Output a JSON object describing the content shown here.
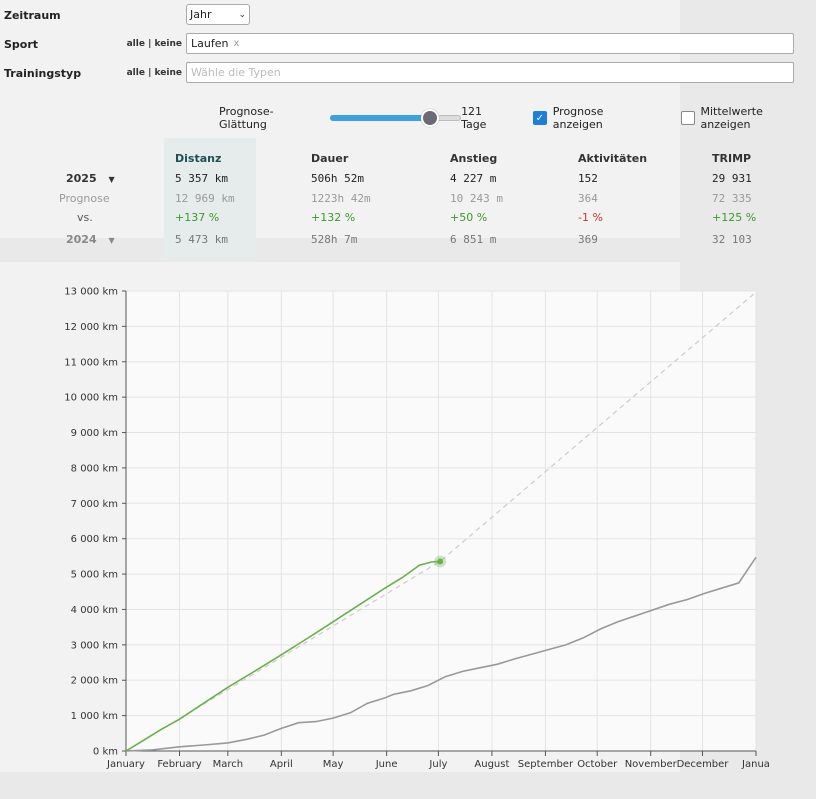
{
  "filters": {
    "zeitraum": {
      "label": "Zeitraum",
      "value": "Jahr"
    },
    "sport": {
      "label": "Sport",
      "alle": "alle",
      "sep": "|",
      "keine": "keine",
      "tag": "Laufen",
      "tag_remove": "x"
    },
    "trainingstyp": {
      "label": "Trainingstyp",
      "alle": "alle",
      "sep": "|",
      "keine": "keine",
      "placeholder": "Wähle die Typen"
    }
  },
  "controls": {
    "smoothing_label": "Prognose-Glättung",
    "smoothing_value": "121 Tage",
    "smoothing_fraction": 0.76,
    "show_forecast_label": "Prognose anzeigen",
    "show_forecast_checked": true,
    "show_means_label": "Mittelwerte anzeigen",
    "show_means_checked": false
  },
  "stats": {
    "headers": [
      "Distanz",
      "Dauer",
      "Anstieg",
      "Aktivitäten",
      "TRIMP"
    ],
    "year_current": "2025",
    "row_current": [
      "5 357 km",
      "506h 52m",
      "4 227 m",
      "152",
      "29 931"
    ],
    "forecast_label": "Prognose",
    "row_forecast": [
      "12 969 km",
      "1223h 42m",
      "10 243 m",
      "364",
      "72 335"
    ],
    "vs_label": "vs.",
    "row_vs": [
      "+137 %",
      "+132 %",
      "+50 %",
      "-1 %",
      "+125 %"
    ],
    "year_compare": "2024",
    "row_compare": [
      "5 473 km",
      "528h 7m",
      "6 851 m",
      "369",
      "32 103"
    ]
  },
  "chart_data": {
    "type": "line",
    "x_labels": [
      "January",
      "February",
      "March",
      "April",
      "May",
      "June",
      "July",
      "August",
      "September",
      "October",
      "November",
      "December",
      "Janua"
    ],
    "y_ticks": [
      "0 km",
      "1 000 km",
      "2 000 km",
      "3 000 km",
      "4 000 km",
      "5 000 km",
      "6 000 km",
      "7 000 km",
      "8 000 km",
      "9 000 km",
      "10 000 km",
      "11 000 km",
      "12 000 km",
      "13 000 km"
    ],
    "ylim": [
      0,
      13000
    ],
    "xlim_days": [
      0,
      365
    ],
    "grid": true,
    "series": [
      {
        "name": "2025",
        "color": "#6ab04c",
        "points": [
          [
            0,
            0
          ],
          [
            10,
            300
          ],
          [
            20,
            600
          ],
          [
            31,
            900
          ],
          [
            45,
            1350
          ],
          [
            59,
            1800
          ],
          [
            75,
            2270
          ],
          [
            90,
            2720
          ],
          [
            105,
            3180
          ],
          [
            120,
            3650
          ],
          [
            135,
            4130
          ],
          [
            150,
            4600
          ],
          [
            160,
            4900
          ],
          [
            170,
            5250
          ],
          [
            177,
            5340
          ],
          [
            182,
            5357
          ]
        ]
      },
      {
        "name": "2025 Prognose",
        "color": "#cccccc",
        "dashed": true,
        "points": [
          [
            0,
            0
          ],
          [
            182,
            5357
          ],
          [
            365,
            12969
          ]
        ]
      },
      {
        "name": "2024",
        "color": "#999999",
        "points": [
          [
            0,
            0
          ],
          [
            15,
            30
          ],
          [
            31,
            120
          ],
          [
            45,
            170
          ],
          [
            59,
            230
          ],
          [
            70,
            330
          ],
          [
            80,
            450
          ],
          [
            90,
            640
          ],
          [
            100,
            800
          ],
          [
            110,
            830
          ],
          [
            120,
            930
          ],
          [
            130,
            1080
          ],
          [
            140,
            1350
          ],
          [
            150,
            1500
          ],
          [
            155,
            1600
          ],
          [
            165,
            1700
          ],
          [
            175,
            1850
          ],
          [
            185,
            2100
          ],
          [
            195,
            2250
          ],
          [
            205,
            2350
          ],
          [
            215,
            2450
          ],
          [
            225,
            2600
          ],
          [
            240,
            2800
          ],
          [
            255,
            3000
          ],
          [
            265,
            3200
          ],
          [
            275,
            3450
          ],
          [
            285,
            3650
          ],
          [
            300,
            3900
          ],
          [
            315,
            4150
          ],
          [
            325,
            4280
          ],
          [
            335,
            4450
          ],
          [
            345,
            4600
          ],
          [
            355,
            4750
          ],
          [
            365,
            5473
          ]
        ]
      }
    ],
    "highlight_point": [
      182,
      5357
    ]
  }
}
